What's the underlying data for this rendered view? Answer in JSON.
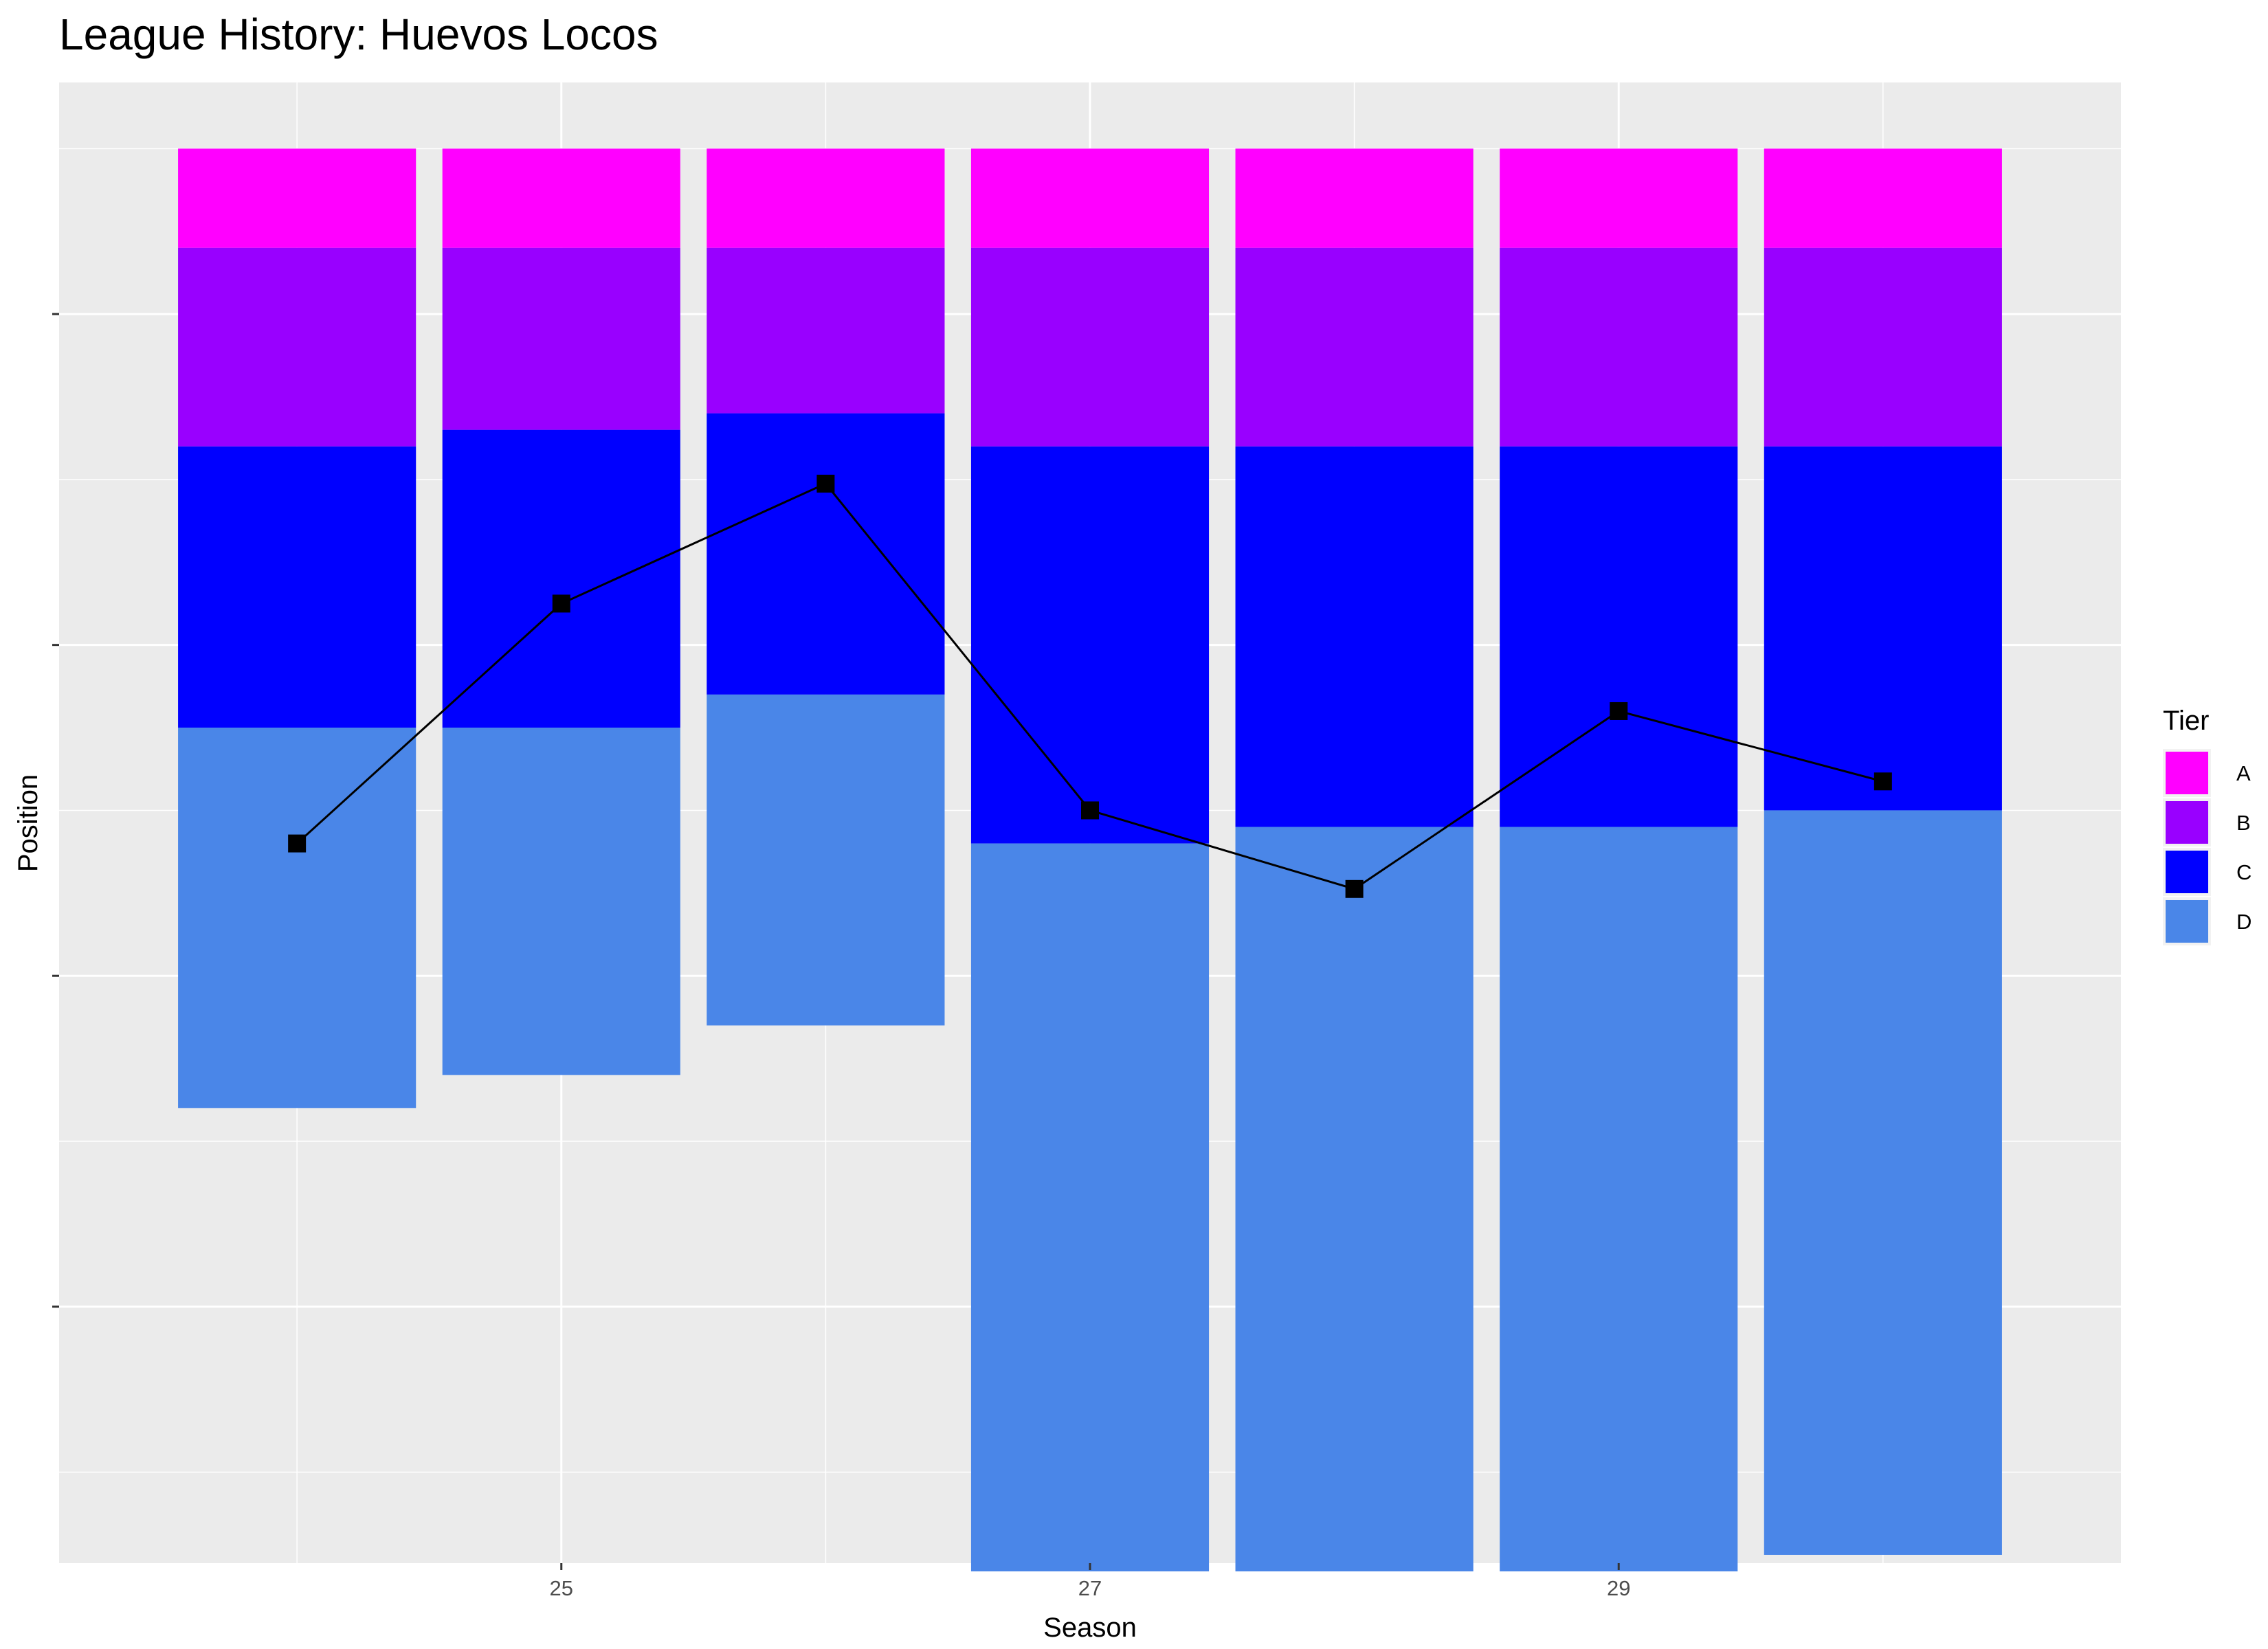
{
  "chart_data": {
    "type": "bar",
    "title": "League History: Huevos Locos",
    "xlabel": "Season",
    "ylabel": "Position",
    "x_ticks": [
      "25",
      "27",
      "29"
    ],
    "xlim": [
      23.1,
      30.9
    ],
    "ylim": [
      38.2,
      2.4
    ],
    "y_reversed": true,
    "y_tick_labels_shown": false,
    "grid": true,
    "legend": {
      "title": "Tier",
      "position": "right",
      "entries": [
        "A",
        "B",
        "C",
        "D"
      ]
    },
    "tier_colors": {
      "A": "#ff00ff",
      "B": "#9900ff",
      "C": "#0000ff",
      "D": "#4a86e8"
    },
    "seasons": [
      24,
      25,
      26,
      27,
      28,
      29,
      30
    ],
    "series": [
      {
        "name": "A",
        "start": [
          4,
          4,
          4,
          4,
          4,
          4,
          4
        ],
        "end": [
          6.4,
          6.4,
          6.4,
          6.4,
          6.4,
          6.4,
          6.4
        ]
      },
      {
        "name": "B",
        "start": [
          6.4,
          6.4,
          6.4,
          6.4,
          6.4,
          6.4,
          6.4
        ],
        "end": [
          11.2,
          10.8,
          10.4,
          11.2,
          11.2,
          11.2,
          11.2
        ]
      },
      {
        "name": "C",
        "start": [
          11.2,
          10.8,
          10.4,
          11.2,
          11.2,
          11.2,
          11.2
        ],
        "end": [
          18.0,
          18.0,
          17.2,
          20.8,
          20.4,
          20.4,
          20.0
        ]
      },
      {
        "name": "D",
        "start": [
          18.0,
          18.0,
          17.2,
          20.8,
          20.4,
          20.4,
          20.0
        ],
        "end": [
          27.2,
          26.4,
          25.2,
          38.4,
          38.4,
          38.4,
          38.0
        ]
      }
    ],
    "position_line": {
      "x": [
        24,
        25,
        26,
        27,
        28,
        29,
        30
      ],
      "y": [
        20.8,
        15.0,
        12.1,
        20.0,
        21.9,
        17.6,
        19.3
      ]
    }
  }
}
